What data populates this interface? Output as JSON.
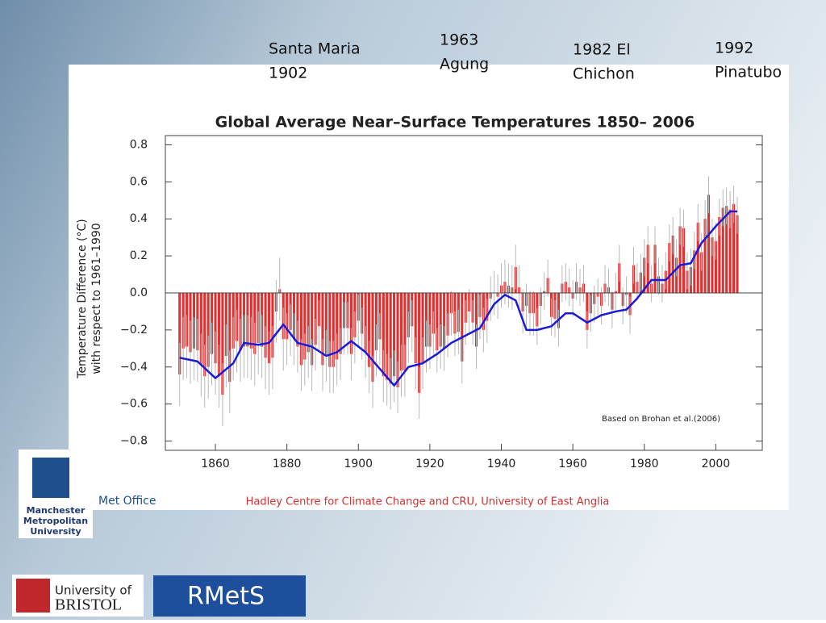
{
  "chart_data": {
    "type": "bar",
    "title": "Global Average Near–Surface Temperatures 1850– 2006",
    "y_label": [
      "Temperature Difference (°C)",
      "with respect to 1961–1990"
    ],
    "note": "Based on Brohan et al.(2006)",
    "source": "Hadley Centre for Climate Change and CRU, University of East Anglia",
    "annotations": [
      [
        "Santa Maria",
        "1902"
      ],
      [
        "1963",
        "Agung"
      ],
      [
        "1982 El",
        "Chichon"
      ],
      [
        "1992",
        "Pinatubo"
      ]
    ],
    "x": [
      1850,
      1851,
      1852,
      1853,
      1854,
      1855,
      1856,
      1857,
      1858,
      1859,
      1860,
      1861,
      1862,
      1863,
      1864,
      1865,
      1866,
      1867,
      1868,
      1869,
      1870,
      1871,
      1872,
      1873,
      1874,
      1875,
      1876,
      1877,
      1878,
      1879,
      1880,
      1881,
      1882,
      1883,
      1884,
      1885,
      1886,
      1887,
      1888,
      1889,
      1890,
      1891,
      1892,
      1893,
      1894,
      1895,
      1896,
      1897,
      1898,
      1899,
      1900,
      1901,
      1902,
      1903,
      1904,
      1905,
      1906,
      1907,
      1908,
      1909,
      1910,
      1911,
      1912,
      1913,
      1914,
      1915,
      1916,
      1917,
      1918,
      1919,
      1920,
      1921,
      1922,
      1923,
      1924,
      1925,
      1926,
      1927,
      1928,
      1929,
      1930,
      1931,
      1932,
      1933,
      1934,
      1935,
      1936,
      1937,
      1938,
      1939,
      1940,
      1941,
      1942,
      1943,
      1944,
      1945,
      1946,
      1947,
      1948,
      1949,
      1950,
      1951,
      1952,
      1953,
      1954,
      1955,
      1956,
      1957,
      1958,
      1959,
      1960,
      1961,
      1962,
      1963,
      1964,
      1965,
      1966,
      1967,
      1968,
      1969,
      1970,
      1971,
      1972,
      1973,
      1974,
      1975,
      1976,
      1977,
      1978,
      1979,
      1980,
      1981,
      1982,
      1983,
      1984,
      1985,
      1986,
      1987,
      1988,
      1989,
      1990,
      1991,
      1992,
      1993,
      1994,
      1995,
      1996,
      1997,
      1998,
      1999,
      2000,
      2001,
      2002,
      2003,
      2004,
      2005,
      2006
    ],
    "values": [
      -0.44,
      -0.3,
      -0.29,
      -0.32,
      -0.3,
      -0.31,
      -0.39,
      -0.45,
      -0.4,
      -0.33,
      -0.38,
      -0.45,
      -0.55,
      -0.34,
      -0.48,
      -0.3,
      -0.26,
      -0.31,
      -0.29,
      -0.29,
      -0.3,
      -0.33,
      -0.27,
      -0.29,
      -0.35,
      -0.38,
      -0.35,
      -0.1,
      0.02,
      -0.25,
      -0.25,
      -0.2,
      -0.25,
      -0.29,
      -0.39,
      -0.36,
      -0.32,
      -0.39,
      -0.28,
      -0.18,
      -0.39,
      -0.34,
      -0.4,
      -0.4,
      -0.36,
      -0.33,
      -0.19,
      -0.19,
      -0.33,
      -0.24,
      -0.15,
      -0.22,
      -0.32,
      -0.4,
      -0.48,
      -0.31,
      -0.25,
      -0.45,
      -0.47,
      -0.49,
      -0.45,
      -0.51,
      -0.42,
      -0.42,
      -0.24,
      -0.18,
      -0.38,
      -0.54,
      -0.38,
      -0.29,
      -0.29,
      -0.22,
      -0.31,
      -0.29,
      -0.3,
      -0.23,
      -0.11,
      -0.22,
      -0.21,
      -0.37,
      -0.16,
      -0.1,
      -0.16,
      -0.29,
      -0.13,
      -0.2,
      -0.15,
      -0.03,
      0.0,
      -0.02,
      0.04,
      0.06,
      0.04,
      0.03,
      0.14,
      0.03,
      -0.1,
      -0.07,
      -0.11,
      -0.11,
      -0.18,
      -0.07,
      0.01,
      0.08,
      -0.13,
      -0.14,
      -0.19,
      0.05,
      0.06,
      0.03,
      -0.03,
      0.06,
      0.03,
      0.05,
      -0.2,
      -0.11,
      -0.06,
      -0.02,
      -0.07,
      0.05,
      0.03,
      -0.09,
      0.01,
      0.16,
      -0.07,
      -0.01,
      -0.12,
      0.15,
      0.06,
      0.11,
      0.19,
      0.26,
      0.05,
      0.26,
      0.09,
      0.05,
      0.12,
      0.27,
      0.31,
      0.19,
      0.36,
      0.35,
      0.12,
      0.14,
      0.23,
      0.38,
      0.22,
      0.4,
      0.53,
      0.3,
      0.28,
      0.41,
      0.46,
      0.47,
      0.45,
      0.48,
      0.42
    ],
    "errors": [
      0.17,
      0.17,
      0.17,
      0.17,
      0.17,
      0.17,
      0.17,
      0.17,
      0.17,
      0.17,
      0.17,
      0.17,
      0.17,
      0.17,
      0.17,
      0.17,
      0.17,
      0.17,
      0.17,
      0.17,
      0.17,
      0.17,
      0.17,
      0.17,
      0.17,
      0.17,
      0.17,
      0.17,
      0.17,
      0.17,
      0.14,
      0.14,
      0.14,
      0.14,
      0.14,
      0.14,
      0.14,
      0.14,
      0.14,
      0.14,
      0.14,
      0.14,
      0.14,
      0.14,
      0.14,
      0.14,
      0.14,
      0.14,
      0.14,
      0.14,
      0.14,
      0.14,
      0.14,
      0.14,
      0.14,
      0.14,
      0.14,
      0.14,
      0.14,
      0.14,
      0.14,
      0.14,
      0.14,
      0.14,
      0.14,
      0.14,
      0.14,
      0.14,
      0.14,
      0.14,
      0.12,
      0.12,
      0.12,
      0.12,
      0.12,
      0.12,
      0.12,
      0.12,
      0.12,
      0.12,
      0.12,
      0.12,
      0.12,
      0.12,
      0.12,
      0.12,
      0.12,
      0.12,
      0.12,
      0.12,
      0.12,
      0.12,
      0.12,
      0.12,
      0.12,
      0.12,
      0.12,
      0.12,
      0.12,
      0.12,
      0.1,
      0.1,
      0.1,
      0.1,
      0.1,
      0.1,
      0.1,
      0.1,
      0.1,
      0.1,
      0.1,
      0.1,
      0.1,
      0.1,
      0.1,
      0.1,
      0.1,
      0.1,
      0.1,
      0.1,
      0.1,
      0.1,
      0.1,
      0.1,
      0.1,
      0.1,
      0.1,
      0.1,
      0.1,
      0.1,
      0.1,
      0.1,
      0.1,
      0.1,
      0.1,
      0.1,
      0.1,
      0.1,
      0.1,
      0.1,
      0.1,
      0.1,
      0.1,
      0.1,
      0.1,
      0.1,
      0.1,
      0.1,
      0.1,
      0.1,
      0.1,
      0.1,
      0.1,
      0.1,
      0.1,
      0.1,
      0.1
    ],
    "color": "#e03030",
    "error_color": "#b8b8b8",
    "smooth": {
      "color": "#1a1ad8",
      "x": [
        1850,
        1855,
        1860,
        1865,
        1868,
        1872,
        1875,
        1879,
        1883,
        1887,
        1891,
        1894,
        1898,
        1902,
        1906,
        1910,
        1914,
        1918,
        1922,
        1926,
        1930,
        1934,
        1938,
        1941,
        1944,
        1947,
        1950,
        1954,
        1958,
        1960,
        1964,
        1968,
        1972,
        1975,
        1978,
        1982,
        1986,
        1990,
        1993,
        1996,
        2000,
        2004,
        2006
      ],
      "values": [
        -0.35,
        -0.37,
        -0.46,
        -0.38,
        -0.27,
        -0.28,
        -0.27,
        -0.17,
        -0.27,
        -0.29,
        -0.34,
        -0.32,
        -0.26,
        -0.32,
        -0.41,
        -0.5,
        -0.4,
        -0.38,
        -0.33,
        -0.27,
        -0.23,
        -0.19,
        -0.06,
        -0.01,
        -0.04,
        -0.2,
        -0.2,
        -0.18,
        -0.11,
        -0.11,
        -0.16,
        -0.12,
        -0.1,
        -0.09,
        -0.03,
        0.07,
        0.07,
        0.15,
        0.16,
        0.27,
        0.36,
        0.44,
        0.44
      ]
    },
    "xlim": [
      1846,
      2013
    ],
    "xticks": [
      1860,
      1880,
      1900,
      1920,
      1940,
      1960,
      1980,
      2000
    ],
    "ylim": [
      -0.85,
      0.85
    ],
    "yticks": [
      {
        "value": -0.8,
        "label": "−0.8"
      },
      {
        "value": -0.6,
        "label": "−0.6"
      },
      {
        "value": -0.4,
        "label": "−0.4"
      },
      {
        "value": -0.2,
        "label": "−0.2"
      },
      {
        "value": 0,
        "label": "0.0"
      },
      0.2,
      0.4,
      0.6,
      0.8
    ]
  },
  "logos": {
    "met_office": "Met Office",
    "mmu": [
      "Manchester",
      "Metropolitan",
      "University"
    ],
    "bristol": [
      "University of",
      "BRISTOL"
    ],
    "rmets": "RMetS"
  }
}
